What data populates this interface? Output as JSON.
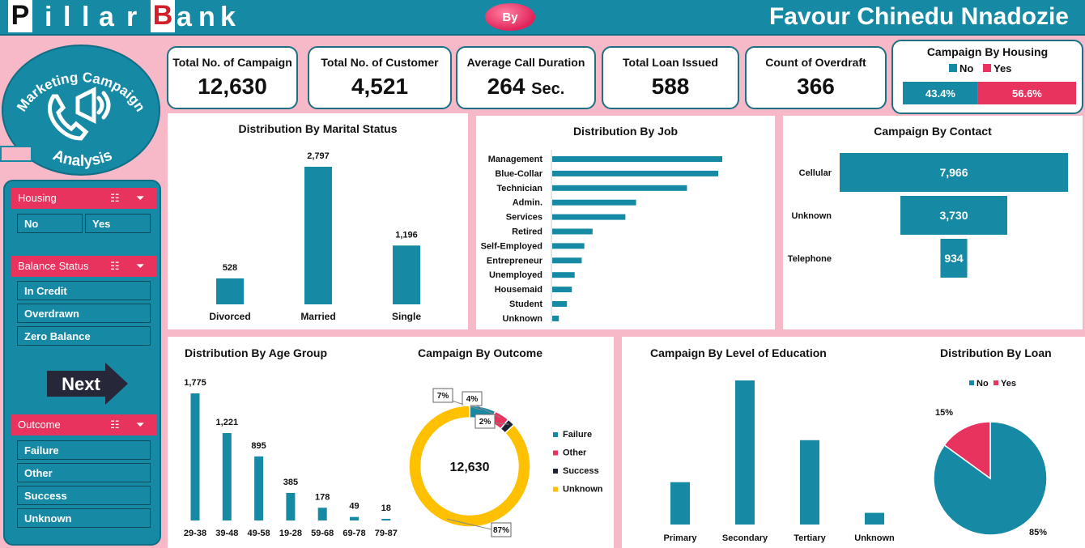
{
  "header": {
    "title_letters": [
      "P",
      "i",
      "l",
      "l",
      "a",
      "r",
      "B",
      "a",
      "n",
      "k"
    ],
    "by_label": "By",
    "author": "Favour Chinedu Nnadozie"
  },
  "kpis": [
    {
      "label": "Total No. of Campaign",
      "value": "12,630",
      "unit": ""
    },
    {
      "label": "Total No. of Customer",
      "value": "4,521",
      "unit": ""
    },
    {
      "label": "Average Call Duration",
      "value": "264",
      "unit": "Sec."
    },
    {
      "label": "Total Loan Issued",
      "value": "588",
      "unit": ""
    },
    {
      "label": "Count of Overdraft",
      "value": "366",
      "unit": ""
    }
  ],
  "logo": {
    "line1": "Marketing Campaign",
    "line2": "Analysis"
  },
  "sidebar": {
    "housing": {
      "title": "Housing",
      "items": [
        "No",
        "Yes"
      ]
    },
    "balance": {
      "title": "Balance Status",
      "items": [
        "In Credit",
        "Overdrawn",
        "Zero Balance"
      ]
    },
    "next_label": "Next",
    "outcome": {
      "title": "Outcome",
      "items": [
        "Failure",
        "Other",
        "Success",
        "Unknown"
      ]
    }
  },
  "colors": {
    "teal": "#168aa5",
    "pink": "#e8335f",
    "black": "#1c2333",
    "yellow": "#ffc000",
    "bg": "#f7b9c8"
  },
  "chart_data": [
    {
      "id": "housing",
      "type": "bar",
      "title": "Campaign By Housing",
      "categories": [
        "No",
        "Yes"
      ],
      "values": [
        43.4,
        56.6
      ],
      "labels": [
        "43.4%",
        "56.6%"
      ],
      "legend": [
        "No",
        "Yes"
      ]
    },
    {
      "id": "marital",
      "type": "bar",
      "title": "Distribution By Marital Status",
      "categories": [
        "Divorced",
        "Married",
        "Single"
      ],
      "values": [
        528,
        2797,
        1196
      ],
      "labels": [
        "528",
        "2,797",
        "1,196"
      ]
    },
    {
      "id": "job",
      "type": "bar",
      "title": "Distribution By Job",
      "categories": [
        "Management",
        "Blue-Collar",
        "Technician",
        "Admin.",
        "Services",
        "Retired",
        "Self-Employed",
        "Entrepreneur",
        "Unemployed",
        "Housemaid",
        "Student",
        "Unknown"
      ],
      "values": [
        969,
        946,
        768,
        478,
        417,
        230,
        183,
        168,
        128,
        112,
        84,
        38
      ]
    },
    {
      "id": "contact",
      "type": "bar",
      "title": "Campaign By Contact",
      "categories": [
        "Cellular",
        "Unknown",
        "Telephone"
      ],
      "values": [
        7966,
        3730,
        934
      ],
      "labels": [
        "7,966",
        "3,730",
        "934"
      ]
    },
    {
      "id": "age",
      "type": "bar",
      "title": "Distribution By Age Group",
      "categories": [
        "29-38",
        "39-48",
        "49-58",
        "19-28",
        "59-68",
        "69-78",
        "79-87"
      ],
      "values": [
        1775,
        1221,
        895,
        385,
        178,
        49,
        18
      ],
      "labels": [
        "1,775",
        "1,221",
        "895",
        "385",
        "178",
        "49",
        "18"
      ]
    },
    {
      "id": "outcome",
      "type": "pie",
      "title": "Campaign By Outcome",
      "center_label": "12,630",
      "categories": [
        "Failure",
        "Other",
        "Success",
        "Unknown"
      ],
      "values": [
        7,
        4,
        2,
        87
      ],
      "labels": [
        "7%",
        "4%",
        "2%",
        "87%"
      ]
    },
    {
      "id": "education",
      "type": "bar",
      "title": "Campaign By Level of Education",
      "categories": [
        "Primary",
        "Secondary",
        "Tertiary",
        "Unknown"
      ],
      "values": [
        678,
        2306,
        1350,
        187
      ]
    },
    {
      "id": "loan",
      "type": "pie",
      "title": "Distribution By Loan",
      "categories": [
        "No",
        "Yes"
      ],
      "values": [
        85,
        15
      ],
      "labels": [
        "85%",
        "15%"
      ],
      "legend": [
        "No",
        "Yes"
      ]
    }
  ]
}
